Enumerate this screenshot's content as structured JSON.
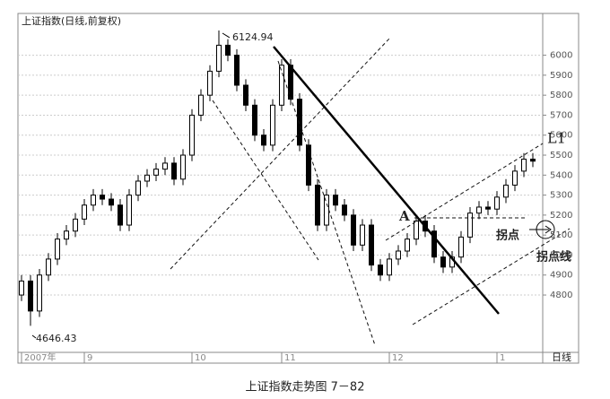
{
  "chart_data": {
    "type": "candlestick",
    "title": "上证指数(日线,前复权)",
    "caption": "上证指数走势图 7－82",
    "period_label": "日线",
    "categories": [
      "2007年",
      null,
      null,
      null,
      null,
      null,
      null,
      "9",
      null,
      null,
      null,
      null,
      null,
      null,
      null,
      null,
      null,
      null,
      null,
      "10",
      null,
      null,
      null,
      null,
      null,
      null,
      null,
      null,
      null,
      "11",
      null,
      null,
      null,
      null,
      null,
      null,
      null,
      null,
      null,
      null,
      null,
      "12",
      null,
      null,
      null,
      null,
      null,
      null,
      null,
      null,
      null,
      null,
      null,
      "1",
      null,
      null,
      null,
      null
    ],
    "open": [
      4800,
      4870,
      4720,
      4900,
      4980,
      5080,
      5120,
      5180,
      5250,
      5300,
      5280,
      5250,
      5150,
      5300,
      5370,
      5400,
      5430,
      5460,
      5380,
      5500,
      5700,
      5800,
      5920,
      6050,
      6000,
      5850,
      5750,
      5600,
      5550,
      5750,
      5950,
      5780,
      5550,
      5350,
      5150,
      5300,
      5250,
      5200,
      5050,
      5150,
      4950,
      4900,
      4980,
      5020,
      5080,
      5170,
      5120,
      4990,
      4940,
      4990,
      5090,
      5210,
      5240,
      5230,
      5290,
      5350,
      5420,
      5480
    ],
    "high": [
      4900,
      4900,
      4930,
      5010,
      5110,
      5150,
      5210,
      5280,
      5330,
      5330,
      5310,
      5280,
      5330,
      5400,
      5430,
      5460,
      5490,
      5490,
      5530,
      5730,
      5830,
      5950,
      6124,
      6080,
      6030,
      5880,
      5780,
      5630,
      5780,
      5980,
      5980,
      5810,
      5580,
      5380,
      5330,
      5330,
      5280,
      5230,
      5180,
      5180,
      4980,
      5010,
      5050,
      5110,
      5200,
      5200,
      5150,
      5020,
      5020,
      5120,
      5240,
      5270,
      5270,
      5320,
      5380,
      5450,
      5510,
      5510
    ],
    "low": [
      4770,
      4646,
      4690,
      4870,
      4950,
      5050,
      5090,
      5150,
      5220,
      5250,
      5220,
      5120,
      5120,
      5270,
      5340,
      5370,
      5400,
      5350,
      5350,
      5470,
      5670,
      5770,
      5890,
      5970,
      5820,
      5720,
      5570,
      5520,
      5520,
      5720,
      5750,
      5520,
      5320,
      5120,
      5120,
      5220,
      5170,
      5020,
      5020,
      4920,
      4870,
      4870,
      4950,
      4990,
      5050,
      5090,
      4960,
      4910,
      4910,
      4960,
      5060,
      5180,
      5200,
      5200,
      5260,
      5320,
      5390,
      5440
    ],
    "close": [
      4870,
      4720,
      4900,
      4980,
      5080,
      5120,
      5180,
      5250,
      5300,
      5280,
      5250,
      5150,
      5300,
      5370,
      5400,
      5430,
      5460,
      5380,
      5500,
      5700,
      5800,
      5920,
      6050,
      6000,
      5850,
      5750,
      5600,
      5550,
      5750,
      5950,
      5780,
      5550,
      5350,
      5150,
      5300,
      5250,
      5200,
      5050,
      5150,
      4950,
      4900,
      4980,
      5020,
      5080,
      5170,
      5120,
      4990,
      4940,
      4990,
      5090,
      5210,
      5240,
      5230,
      5290,
      5350,
      5420,
      5480,
      5470
    ],
    "ylim": [
      4513,
      6209
    ],
    "yticks": [
      4800,
      4900,
      5000,
      5100,
      5200,
      5300,
      5400,
      5500,
      5600,
      5700,
      5800,
      5900,
      6000
    ],
    "grid": true,
    "color": "#000000",
    "annotations": {
      "high_label": "6124.94",
      "low_label": "4646.43",
      "point_a": "A",
      "line_l1": "L1",
      "turning_point": "拐点",
      "turning_line": "拐点线"
    }
  }
}
